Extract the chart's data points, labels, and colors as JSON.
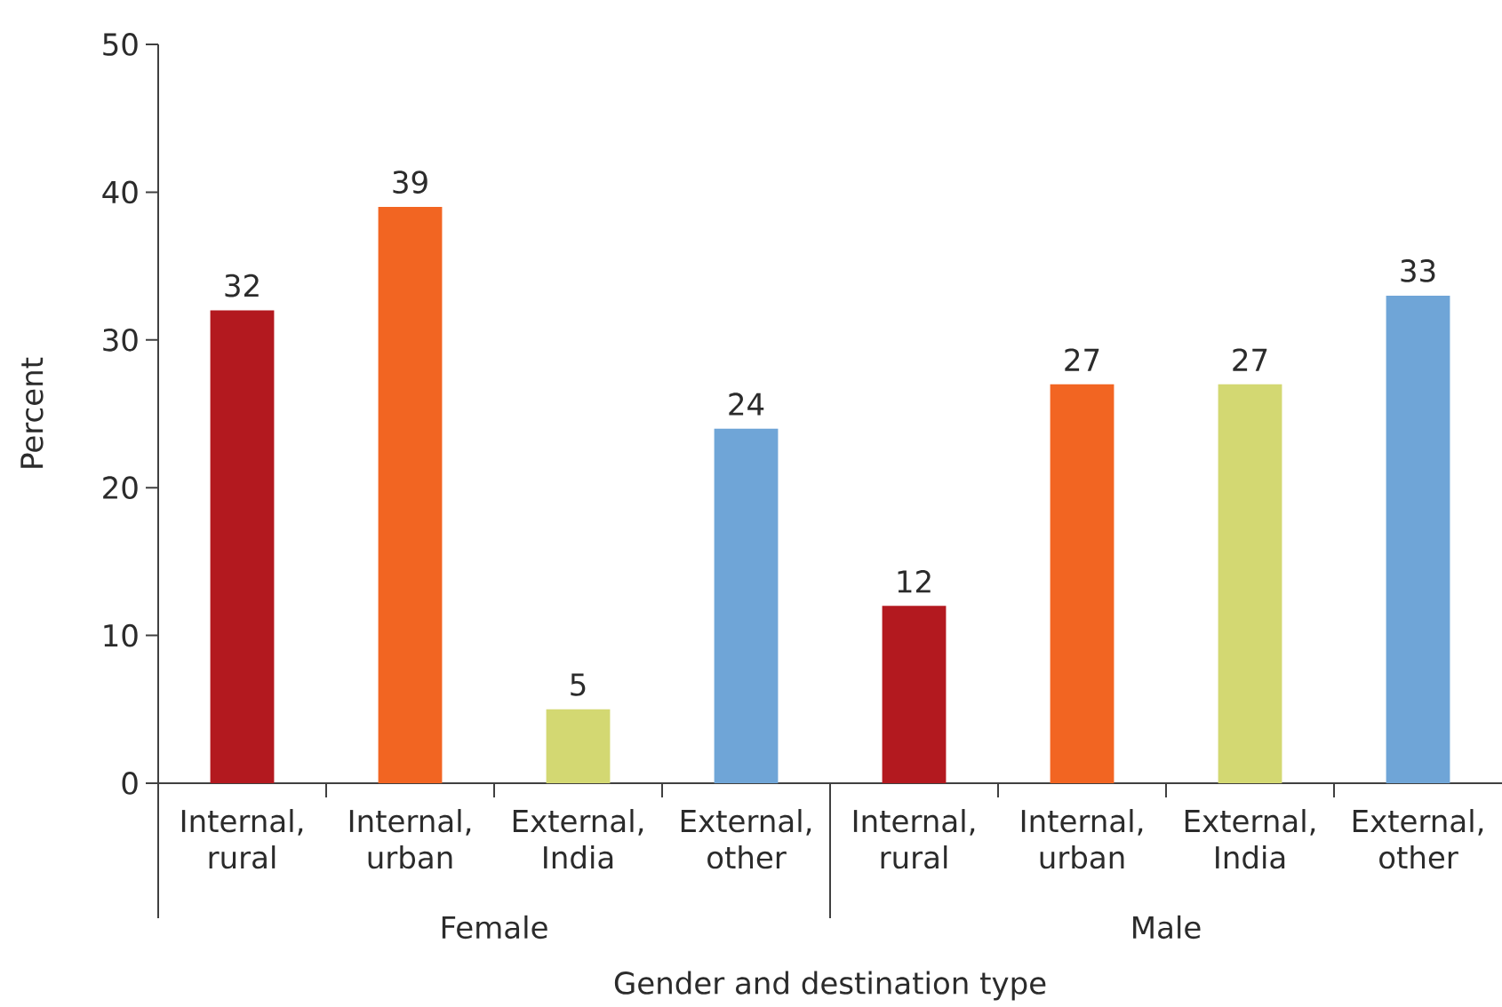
{
  "chart_data": {
    "type": "bar",
    "xlabel": "Gender and destination type",
    "ylabel": "Percent",
    "categories": [
      "Internal, rural",
      "Internal, urban",
      "External, India",
      "External, other",
      "Internal, rural",
      "Internal, urban",
      "External, India",
      "External, other"
    ],
    "values": [
      32,
      39,
      5,
      24,
      12,
      27,
      27,
      33
    ],
    "colors": [
      "#b3191f",
      "#f26522",
      "#d3d872",
      "#6fa5d7",
      "#b3191f",
      "#f26522",
      "#d3d872",
      "#6fa5d7"
    ],
    "ylim": [
      0,
      50
    ],
    "yticks": [
      0,
      10,
      20,
      30,
      40,
      50
    ],
    "data_labels": true,
    "annotations": [
      "Female",
      "Male"
    ]
  }
}
